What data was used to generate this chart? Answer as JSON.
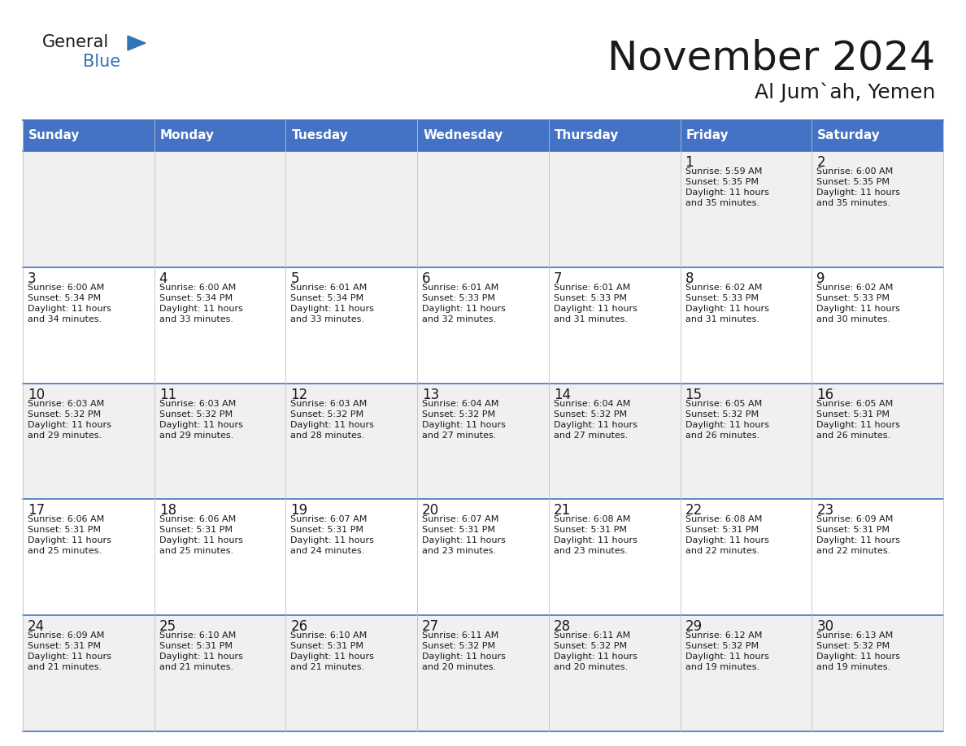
{
  "title": "November 2024",
  "subtitle": "Al Jum`ah, Yemen",
  "header_color": "#4472C4",
  "header_text_color": "#FFFFFF",
  "cell_bg_color": "#FFFFFF",
  "alt_cell_bg_color": "#F0F0F0",
  "border_color": "#4472C4",
  "text_color": "#1a1a1a",
  "days_of_week": [
    "Sunday",
    "Monday",
    "Tuesday",
    "Wednesday",
    "Thursday",
    "Friday",
    "Saturday"
  ],
  "weeks": [
    [
      {
        "day": "",
        "sunrise": "",
        "sunset": "",
        "daylight": ""
      },
      {
        "day": "",
        "sunrise": "",
        "sunset": "",
        "daylight": ""
      },
      {
        "day": "",
        "sunrise": "",
        "sunset": "",
        "daylight": ""
      },
      {
        "day": "",
        "sunrise": "",
        "sunset": "",
        "daylight": ""
      },
      {
        "day": "",
        "sunrise": "",
        "sunset": "",
        "daylight": ""
      },
      {
        "day": "1",
        "sunrise": "5:59 AM",
        "sunset": "5:35 PM",
        "daylight": "11 hours and 35 minutes."
      },
      {
        "day": "2",
        "sunrise": "6:00 AM",
        "sunset": "5:35 PM",
        "daylight": "11 hours and 35 minutes."
      }
    ],
    [
      {
        "day": "3",
        "sunrise": "6:00 AM",
        "sunset": "5:34 PM",
        "daylight": "11 hours and 34 minutes."
      },
      {
        "day": "4",
        "sunrise": "6:00 AM",
        "sunset": "5:34 PM",
        "daylight": "11 hours and 33 minutes."
      },
      {
        "day": "5",
        "sunrise": "6:01 AM",
        "sunset": "5:34 PM",
        "daylight": "11 hours and 33 minutes."
      },
      {
        "day": "6",
        "sunrise": "6:01 AM",
        "sunset": "5:33 PM",
        "daylight": "11 hours and 32 minutes."
      },
      {
        "day": "7",
        "sunrise": "6:01 AM",
        "sunset": "5:33 PM",
        "daylight": "11 hours and 31 minutes."
      },
      {
        "day": "8",
        "sunrise": "6:02 AM",
        "sunset": "5:33 PM",
        "daylight": "11 hours and 31 minutes."
      },
      {
        "day": "9",
        "sunrise": "6:02 AM",
        "sunset": "5:33 PM",
        "daylight": "11 hours and 30 minutes."
      }
    ],
    [
      {
        "day": "10",
        "sunrise": "6:03 AM",
        "sunset": "5:32 PM",
        "daylight": "11 hours and 29 minutes."
      },
      {
        "day": "11",
        "sunrise": "6:03 AM",
        "sunset": "5:32 PM",
        "daylight": "11 hours and 29 minutes."
      },
      {
        "day": "12",
        "sunrise": "6:03 AM",
        "sunset": "5:32 PM",
        "daylight": "11 hours and 28 minutes."
      },
      {
        "day": "13",
        "sunrise": "6:04 AM",
        "sunset": "5:32 PM",
        "daylight": "11 hours and 27 minutes."
      },
      {
        "day": "14",
        "sunrise": "6:04 AM",
        "sunset": "5:32 PM",
        "daylight": "11 hours and 27 minutes."
      },
      {
        "day": "15",
        "sunrise": "6:05 AM",
        "sunset": "5:32 PM",
        "daylight": "11 hours and 26 minutes."
      },
      {
        "day": "16",
        "sunrise": "6:05 AM",
        "sunset": "5:31 PM",
        "daylight": "11 hours and 26 minutes."
      }
    ],
    [
      {
        "day": "17",
        "sunrise": "6:06 AM",
        "sunset": "5:31 PM",
        "daylight": "11 hours and 25 minutes."
      },
      {
        "day": "18",
        "sunrise": "6:06 AM",
        "sunset": "5:31 PM",
        "daylight": "11 hours and 25 minutes."
      },
      {
        "day": "19",
        "sunrise": "6:07 AM",
        "sunset": "5:31 PM",
        "daylight": "11 hours and 24 minutes."
      },
      {
        "day": "20",
        "sunrise": "6:07 AM",
        "sunset": "5:31 PM",
        "daylight": "11 hours and 23 minutes."
      },
      {
        "day": "21",
        "sunrise": "6:08 AM",
        "sunset": "5:31 PM",
        "daylight": "11 hours and 23 minutes."
      },
      {
        "day": "22",
        "sunrise": "6:08 AM",
        "sunset": "5:31 PM",
        "daylight": "11 hours and 22 minutes."
      },
      {
        "day": "23",
        "sunrise": "6:09 AM",
        "sunset": "5:31 PM",
        "daylight": "11 hours and 22 minutes."
      }
    ],
    [
      {
        "day": "24",
        "sunrise": "6:09 AM",
        "sunset": "5:31 PM",
        "daylight": "11 hours and 21 minutes."
      },
      {
        "day": "25",
        "sunrise": "6:10 AM",
        "sunset": "5:31 PM",
        "daylight": "11 hours and 21 minutes."
      },
      {
        "day": "26",
        "sunrise": "6:10 AM",
        "sunset": "5:31 PM",
        "daylight": "11 hours and 21 minutes."
      },
      {
        "day": "27",
        "sunrise": "6:11 AM",
        "sunset": "5:32 PM",
        "daylight": "11 hours and 20 minutes."
      },
      {
        "day": "28",
        "sunrise": "6:11 AM",
        "sunset": "5:32 PM",
        "daylight": "11 hours and 20 minutes."
      },
      {
        "day": "29",
        "sunrise": "6:12 AM",
        "sunset": "5:32 PM",
        "daylight": "11 hours and 19 minutes."
      },
      {
        "day": "30",
        "sunrise": "6:13 AM",
        "sunset": "5:32 PM",
        "daylight": "11 hours and 19 minutes."
      }
    ]
  ],
  "logo_general_color": "#1a1a1a",
  "logo_blue_color": "#2E75B6",
  "logo_triangle_color": "#2E75B6",
  "fig_width": 11.88,
  "fig_height": 9.18,
  "dpi": 100
}
